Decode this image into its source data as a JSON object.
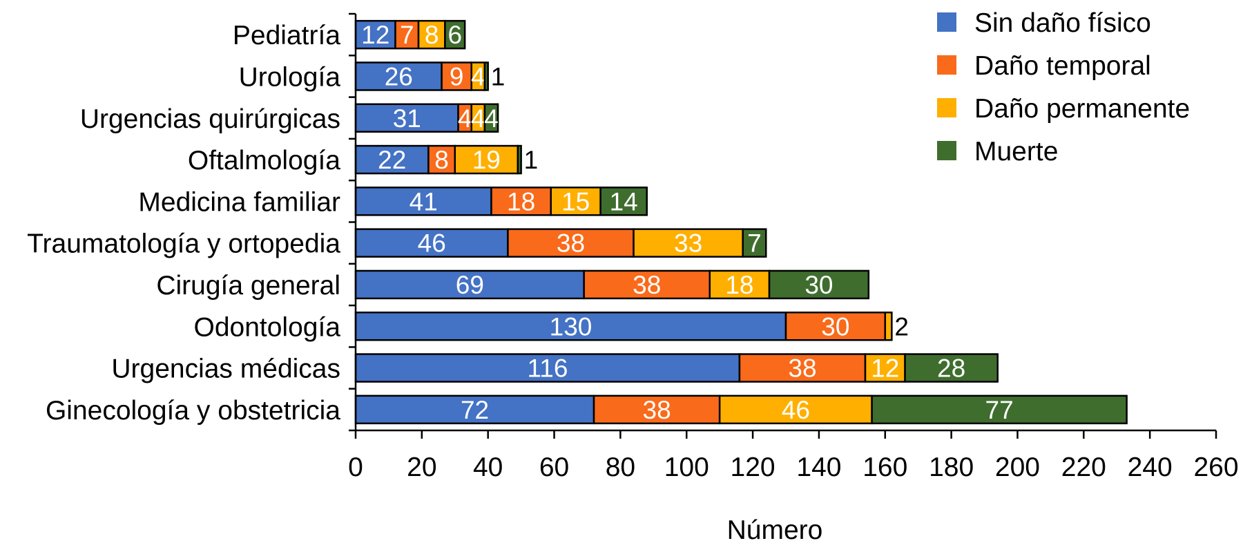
{
  "chart_data": {
    "type": "bar",
    "orientation": "horizontal",
    "stacked": true,
    "title": "",
    "xlabel": "Número",
    "ylabel": "",
    "xlim": [
      0,
      260
    ],
    "xticks": [
      0,
      20,
      40,
      60,
      80,
      100,
      120,
      140,
      160,
      180,
      200,
      220,
      240,
      260
    ],
    "grid": false,
    "legend_position": "top-right",
    "categories": [
      "Pediatría",
      "Urología",
      "Urgencias quirúrgicas",
      "Oftalmología",
      "Medicina familiar",
      "Traumatología y ortopedia",
      "Cirugía general",
      "Odontología",
      "Urgencias médicas",
      "Ginecología y obstetricia"
    ],
    "series": [
      {
        "name": "Sin daño físico",
        "color": "#4472C4",
        "values": [
          12,
          26,
          31,
          22,
          41,
          46,
          69,
          130,
          116,
          72
        ]
      },
      {
        "name": "Daño temporal",
        "color": "#F96A1B",
        "values": [
          7,
          9,
          4,
          8,
          18,
          38,
          38,
          30,
          38,
          38
        ]
      },
      {
        "name": "Daño permanente",
        "color": "#FFAF00",
        "values": [
          8,
          4,
          4,
          19,
          15,
          33,
          18,
          2,
          12,
          46
        ]
      },
      {
        "name": "Muerte",
        "color": "#3F6D2E",
        "values": [
          6,
          1,
          4,
          1,
          14,
          7,
          30,
          0,
          28,
          77
        ]
      }
    ]
  }
}
